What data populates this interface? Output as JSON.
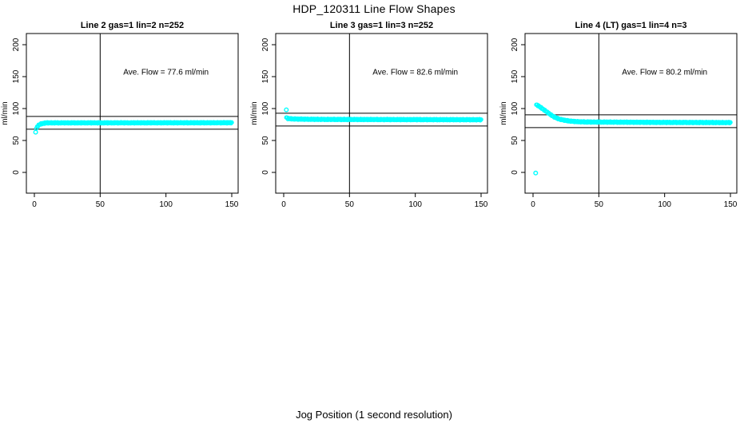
{
  "page": {
    "main_title": "HDP_120311  Line Flow Shapes",
    "x_axis_label": "Jog Position (1 second resolution)",
    "background_color": "#ffffff",
    "text_color": "#000000",
    "marker_color": "#00ffff"
  },
  "chart_data": [
    {
      "type": "scatter",
      "title": "Line 2 gas=1 lin=2 n=252",
      "annotation": "Ave. Flow =  77.6  ml/min",
      "ave_flow_ml_min": 77.6,
      "n_label": 252,
      "ylabel": "ml/min",
      "x_ticks": [
        0,
        50,
        100,
        150
      ],
      "y_ticks": [
        0,
        50,
        100,
        150,
        200
      ],
      "xlim": [
        -6,
        155
      ],
      "ylim": [
        -32,
        218
      ],
      "grid": false,
      "vline_x": 50,
      "hlines_y": [
        67.6,
        87.6
      ],
      "marker_color": "#00ffff",
      "n_markers": 250,
      "x_start": 1.5,
      "x_end": 150,
      "trend": [
        [
          1.5,
          69
        ],
        [
          2.5,
          72.5
        ],
        [
          3.5,
          74.5
        ],
        [
          5,
          76
        ],
        [
          7,
          77
        ],
        [
          10,
          77.6
        ],
        [
          150,
          77.8
        ]
      ],
      "outliers": [
        [
          1,
          63
        ]
      ],
      "annotation_pos": [
        100,
        157
      ]
    },
    {
      "type": "scatter",
      "title": "Line 3 gas=1 lin=3 n=252",
      "annotation": "Ave. Flow =  82.6  ml/min",
      "ave_flow_ml_min": 82.6,
      "n_label": 252,
      "ylabel": "ml/min",
      "x_ticks": [
        0,
        50,
        100,
        150
      ],
      "y_ticks": [
        0,
        50,
        100,
        150,
        200
      ],
      "xlim": [
        -6,
        155
      ],
      "ylim": [
        -32,
        218
      ],
      "grid": false,
      "vline_x": 50,
      "hlines_y": [
        72.6,
        92.6
      ],
      "marker_color": "#00ffff",
      "n_markers": 250,
      "x_start": 2,
      "x_end": 150,
      "trend": [
        [
          2,
          86
        ],
        [
          3,
          84.5
        ],
        [
          5,
          84
        ],
        [
          10,
          83.5
        ],
        [
          30,
          83
        ],
        [
          150,
          82.5
        ]
      ],
      "outliers": [
        [
          2,
          98
        ]
      ],
      "annotation_pos": [
        100,
        157
      ]
    },
    {
      "type": "scatter",
      "title": "Line 4 (LT) gas=1 lin=4 n=3",
      "annotation": "Ave. Flow =  80.2  ml/min",
      "ave_flow_ml_min": 80.2,
      "n_label": 3,
      "ylabel": "ml/min",
      "x_ticks": [
        0,
        50,
        100,
        150
      ],
      "y_ticks": [
        0,
        50,
        100,
        150,
        200
      ],
      "xlim": [
        -6,
        155
      ],
      "ylim": [
        -32,
        218
      ],
      "grid": false,
      "vline_x": 50,
      "hlines_y": [
        70.2,
        90.2
      ],
      "marker_color": "#00ffff",
      "n_markers": 250,
      "x_start": 2.5,
      "x_end": 150,
      "trend": [
        [
          2.5,
          106
        ],
        [
          4,
          104.5
        ],
        [
          6,
          101.5
        ],
        [
          8,
          98.5
        ],
        [
          10,
          95.5
        ],
        [
          12,
          92.5
        ],
        [
          14,
          89.5
        ],
        [
          16,
          87
        ],
        [
          18,
          85
        ],
        [
          20,
          83.5
        ],
        [
          23,
          82
        ],
        [
          26,
          81
        ],
        [
          30,
          80
        ],
        [
          35,
          79.3
        ],
        [
          40,
          79
        ],
        [
          60,
          78.7
        ],
        [
          100,
          78.3
        ],
        [
          150,
          78
        ]
      ],
      "outliers": [
        [
          2,
          -1
        ]
      ],
      "annotation_pos": [
        100,
        157
      ]
    }
  ]
}
